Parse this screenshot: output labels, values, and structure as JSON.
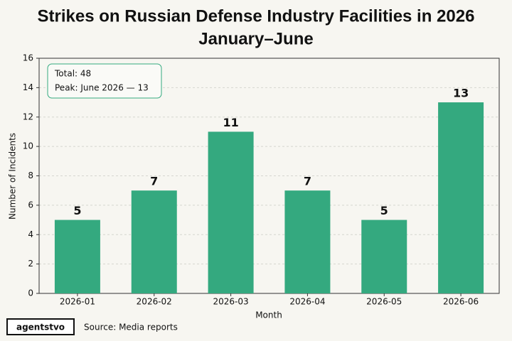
{
  "chart_data": {
    "type": "bar",
    "title": [
      "Strikes on Russian Defense Industry Facilities in 2026",
      "January–June"
    ],
    "categories": [
      "2026-01",
      "2026-02",
      "2026-03",
      "2026-04",
      "2026-05",
      "2026-06"
    ],
    "values": [
      5,
      7,
      11,
      7,
      5,
      13
    ],
    "color": "#34a97f",
    "ylim": [
      0,
      16
    ],
    "yticks": [
      0,
      2,
      4,
      6,
      8,
      10,
      12,
      14,
      16
    ],
    "grid": true,
    "xlabel": "Month",
    "ylabel": "Number of Incidents",
    "annotations": [
      "Total: 48",
      "Peak: June 2026 — 13"
    ],
    "logo": "agentstvo",
    "source": "Source: Media reports"
  }
}
